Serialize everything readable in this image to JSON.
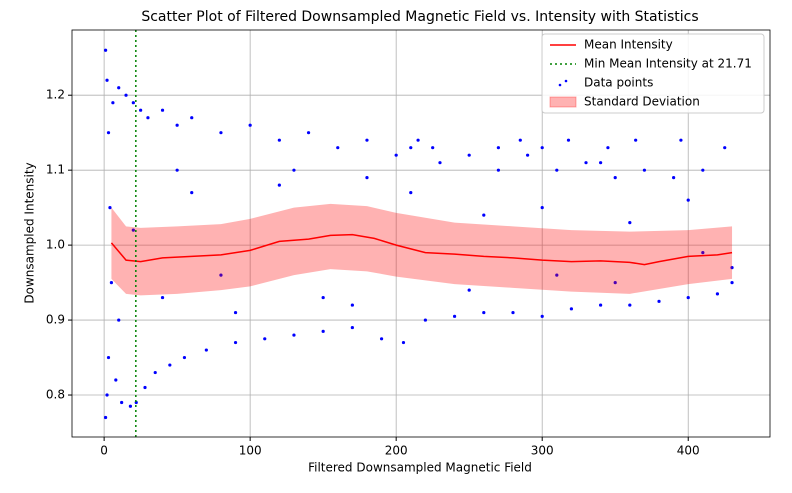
{
  "chart_data": {
    "type": "scatter",
    "title": "Scatter Plot of Filtered Downsampled Magnetic Field vs. Intensity with Statistics",
    "x_label": "Filtered Downsampled Magnetic Field",
    "y_label": "Downsampled Intensity",
    "xlim": [
      -22,
      456
    ],
    "ylim": [
      0.744,
      1.287
    ],
    "xticks": [
      0,
      100,
      200,
      300,
      400
    ],
    "yticks": [
      0.8,
      0.9,
      {
        "value": 1,
        "label": "1.0"
      },
      1.1,
      1.2
    ],
    "grid": true,
    "legend": "upper right",
    "points": {
      "name": "Data points",
      "color": "#0000ff",
      "x": [
        1,
        1,
        2,
        2,
        3,
        3,
        4,
        5,
        6,
        8,
        10,
        12,
        15,
        18,
        20,
        22,
        25,
        28,
        30,
        35,
        40,
        45,
        50,
        55,
        60,
        70,
        80,
        90,
        100,
        110,
        120,
        130,
        140,
        150,
        160,
        170,
        180,
        190,
        200,
        205,
        210,
        220,
        230,
        240,
        250,
        260,
        270,
        280,
        290,
        300,
        310,
        320,
        330,
        340,
        350,
        360,
        370,
        380,
        390,
        400,
        410,
        420,
        425,
        430,
        215,
        225,
        270,
        285,
        300,
        318,
        345,
        364,
        395,
        340,
        20,
        40,
        60,
        80,
        120,
        150,
        180,
        250,
        300,
        350,
        400,
        430,
        10,
        50,
        90,
        130,
        170,
        210,
        260,
        310,
        360,
        410
      ],
      "y": [
        1.26,
        0.77,
        1.22,
        0.8,
        1.15,
        0.85,
        1.05,
        0.95,
        1.19,
        0.82,
        1.21,
        0.79,
        1.2,
        0.785,
        1.19,
        0.79,
        1.18,
        0.81,
        1.17,
        0.83,
        1.18,
        0.84,
        1.16,
        0.85,
        1.17,
        0.86,
        1.15,
        0.87,
        1.16,
        0.875,
        1.14,
        0.88,
        1.15,
        0.885,
        1.13,
        0.89,
        1.14,
        0.875,
        1.12,
        0.87,
        1.13,
        0.9,
        1.11,
        0.905,
        1.12,
        0.91,
        1.1,
        0.91,
        1.12,
        0.905,
        1.1,
        0.915,
        1.11,
        0.92,
        1.09,
        0.92,
        1.1,
        0.925,
        1.09,
        0.93,
        1.1,
        0.935,
        1.13,
        0.95,
        1.14,
        1.13,
        1.13,
        1.14,
        1.13,
        1.14,
        1.13,
        1.14,
        1.14,
        1.11,
        1.02,
        0.93,
        1.07,
        0.96,
        1.08,
        0.93,
        1.09,
        0.94,
        1.05,
        0.95,
        1.06,
        0.97,
        0.9,
        1.1,
        0.91,
        1.1,
        0.92,
        1.07,
        1.04,
        0.96,
        1.03,
        0.99
      ]
    },
    "band": {
      "name": "Standard Deviation",
      "color": "#ff0000",
      "x": [
        5,
        15,
        25,
        50,
        80,
        100,
        130,
        155,
        180,
        200,
        240,
        280,
        320,
        360,
        400,
        430
      ],
      "upper": [
        1.05,
        1.025,
        1.023,
        1.025,
        1.028,
        1.035,
        1.05,
        1.055,
        1.052,
        1.043,
        1.03,
        1.025,
        1.02,
        1.018,
        1.02,
        1.025
      ],
      "lower": [
        0.955,
        0.935,
        0.933,
        0.935,
        0.94,
        0.945,
        0.96,
        0.968,
        0.965,
        0.958,
        0.948,
        0.943,
        0.938,
        0.935,
        0.948,
        0.955
      ]
    },
    "mean": {
      "name": "Mean Intensity",
      "color": "#ff0000",
      "x": [
        5,
        15,
        25,
        40,
        60,
        80,
        100,
        120,
        140,
        155,
        170,
        185,
        200,
        220,
        240,
        260,
        280,
        300,
        320,
        340,
        360,
        370,
        380,
        400,
        420,
        430
      ],
      "values": [
        1.003,
        0.98,
        0.978,
        0.983,
        0.985,
        0.987,
        0.993,
        1.005,
        1.008,
        1.013,
        1.014,
        1.009,
        1.0,
        0.99,
        0.988,
        0.985,
        0.983,
        0.98,
        0.978,
        0.979,
        0.977,
        0.974,
        0.978,
        0.985,
        0.987,
        0.99
      ]
    },
    "vline": {
      "name": "Min Mean Intensity at 21.71",
      "color": "#008000",
      "x": 21.71
    }
  }
}
